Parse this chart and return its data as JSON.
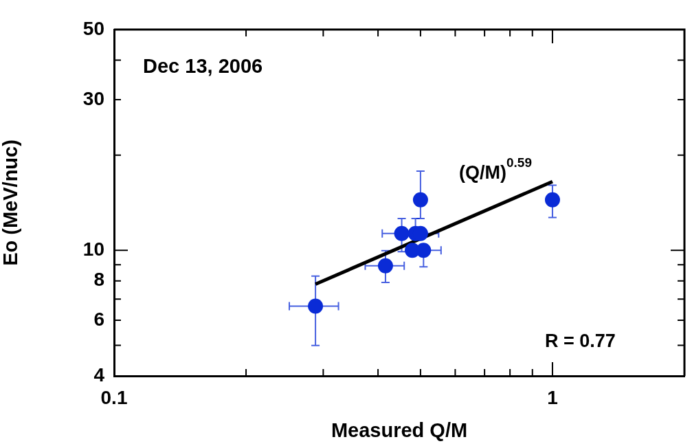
{
  "chart_data": {
    "type": "scatter",
    "xlabel": "Measured Q/M",
    "ylabel": "Eo (MeV/nuc)",
    "log": "xy",
    "marker": "circle",
    "annotations": [
      "Dec 13, 2006",
      "(Q/M)$^{0.59}$",
      "R = 0.77"
    ],
    "xlim": [
      0.1,
      2
    ],
    "ylim": [
      4,
      50
    ],
    "xticks": [
      0.1,
      {
        "value": 0.2,
        "label": null
      },
      {
        "value": 0.3,
        "label": null
      },
      {
        "value": 0.4,
        "label": null
      },
      {
        "value": 0.5,
        "label": null
      },
      {
        "value": 0.6,
        "label": null
      },
      {
        "value": 0.7,
        "label": null
      },
      {
        "value": 0.8,
        "label": null
      },
      {
        "value": 0.9,
        "label": null
      },
      1
    ],
    "yticks": [
      4,
      {
        "value": 5,
        "label": null
      },
      6,
      {
        "value": 7,
        "label": null
      },
      8,
      {
        "value": 9,
        "label": null
      },
      10,
      {
        "value": 20,
        "label": null
      },
      30,
      {
        "value": 40,
        "label": null
      },
      50
    ],
    "series": [
      {
        "color": "#0a2bd6",
        "x": [
          0.288,
          0.416,
          0.453,
          0.487,
          0.5,
          0.5,
          0.479,
          0.508,
          1.0
        ],
        "values": [
          6.65,
          8.93,
          11.3,
          11.3,
          11.3,
          14.45,
          10.0,
          10.0,
          14.45
        ],
        "errors": [
          [
            4.99,
            8.28
          ],
          [
            7.91,
            9.97
          ],
          [
            9.9,
            12.6
          ],
          [
            11.3,
            12.6
          ],
          null,
          [
            12.6,
            17.8
          ],
          null,
          [
            8.86,
            10.0
          ],
          [
            12.7,
            16.06
          ]
        ],
        "xerrors": [
          [
            0.251,
            0.325
          ],
          [
            0.374,
            0.459
          ],
          [
            0.409,
            0.453
          ],
          null,
          [
            0.5,
            0.55
          ],
          null,
          null,
          [
            0.508,
            0.557
          ],
          null
        ]
      },
      {
        "type": "line",
        "color": "#000000",
        "marker": "none",
        "x": [
          0.288,
          1.0
        ],
        "values": [
          7.81,
          16.5
        ]
      }
    ]
  }
}
